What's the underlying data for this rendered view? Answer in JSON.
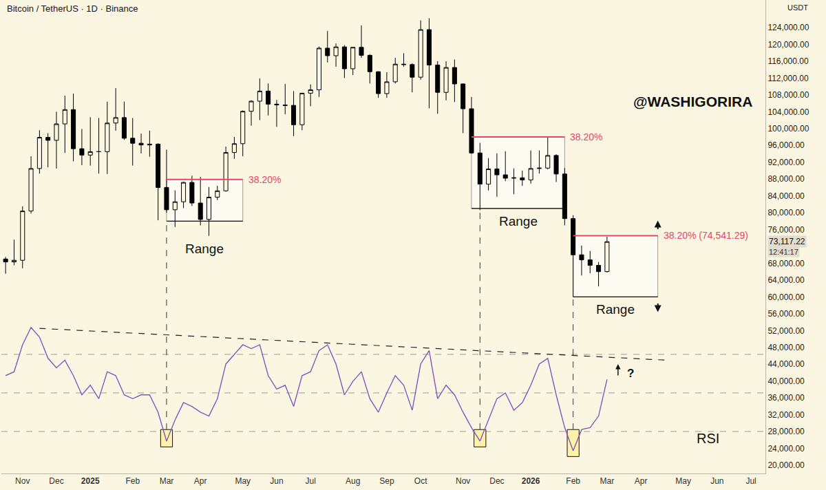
{
  "chart_data": {
    "type": "candlestick",
    "title": "Bitcoin / TetherUS · 1D · Binance",
    "currency": "USDT",
    "watermark": "@WASHIGORIRA",
    "categories": [
      null,
      null,
      "Nov",
      null,
      null,
      null,
      "Dec",
      null,
      null,
      null,
      "2025",
      null,
      null,
      null,
      null,
      "Feb",
      null,
      null,
      null,
      "Mar",
      null,
      null,
      null,
      "Apr",
      null,
      null,
      null,
      null,
      "May",
      null,
      null,
      null,
      "Jun",
      null,
      null,
      null,
      "Jul",
      null,
      null,
      null,
      null,
      "Aug",
      null,
      null,
      null,
      "Sep",
      null,
      null,
      null,
      "Oct",
      null,
      null,
      null,
      null,
      "Nov",
      null,
      null,
      null,
      "Dec",
      null,
      null,
      null,
      "2026",
      null,
      null,
      null,
      null,
      "Feb",
      null,
      null,
      null,
      "Mar",
      null,
      null,
      null,
      "Apr",
      null,
      null,
      null,
      null,
      "May",
      null,
      null,
      null,
      "Jun",
      null,
      null,
      null,
      "Jul",
      null
    ],
    "open": [
      69000,
      68300,
      68700,
      80400,
      90500,
      97900,
      97200,
      101100,
      104500,
      95200,
      93700,
      94500,
      94500,
      101300,
      102600,
      97700,
      96500,
      96100,
      96300,
      86000,
      80700,
      82600,
      87200,
      82300,
      78400,
      83700,
      85200,
      94300,
      96400,
      104100,
      106500,
      108900,
      105800,
      105600,
      105500,
      100900,
      108400,
      109200,
      119100,
      117300,
      119400,
      114200,
      119300,
      117400,
      113500,
      108300,
      111100,
      115300,
      115200,
      112200,
      123500,
      115100,
      108600,
      114500,
      110600,
      104700,
      94200,
      86800,
      90400,
      89000,
      88200,
      88300,
      87800,
      90500,
      90600,
      93600,
      89200,
      78600,
      70000,
      68800,
      67500,
      66000,
      null,
      null,
      null,
      null,
      null,
      null,
      null,
      null,
      null,
      null,
      null,
      null,
      null,
      null,
      null,
      null,
      null,
      null
    ],
    "high": [
      69500,
      73600,
      81500,
      93400,
      99600,
      98900,
      104000,
      107800,
      108300,
      99900,
      102700,
      102500,
      106400,
      109600,
      106400,
      102500,
      98800,
      99500,
      96500,
      95000,
      85300,
      87400,
      88800,
      88500,
      86100,
      86400,
      95700,
      98000,
      104300,
      106700,
      111900,
      110700,
      106800,
      110600,
      108900,
      108500,
      110500,
      119500,
      123200,
      120200,
      119800,
      119300,
      124500,
      117600,
      113600,
      113400,
      116800,
      117900,
      115500,
      125700,
      126200,
      116000,
      116000,
      116400,
      110700,
      107500,
      96600,
      93000,
      94100,
      94600,
      90500,
      90000,
      94800,
      94800,
      97900,
      93900,
      90600,
      79400,
      72200,
      70900,
      68300,
      74300,
      null,
      null,
      null,
      null,
      null,
      null,
      null,
      null,
      null,
      null,
      null,
      null,
      null,
      null,
      null,
      null,
      null,
      null
    ],
    "low": [
      65500,
      67500,
      66800,
      79800,
      89300,
      90800,
      90500,
      94200,
      92200,
      91300,
      91200,
      89300,
      89200,
      99500,
      97300,
      91200,
      94100,
      93300,
      78200,
      80000,
      76600,
      81100,
      81600,
      77000,
      74500,
      83000,
      85000,
      92800,
      93400,
      100700,
      102000,
      103100,
      100400,
      103400,
      98200,
      99600,
      105300,
      107500,
      115700,
      114700,
      112000,
      112700,
      116800,
      110700,
      107300,
      107300,
      110700,
      114700,
      108600,
      111600,
      104800,
      103500,
      106700,
      106300,
      98900,
      94000,
      80600,
      85300,
      83800,
      87500,
      84400,
      86400,
      86900,
      89300,
      90300,
      87300,
      77000,
      60000,
      65100,
      65600,
      62500,
      65800,
      null,
      null,
      null,
      null,
      null,
      null,
      null,
      null,
      null,
      null,
      null,
      null,
      null,
      null,
      null,
      null,
      null,
      null
    ],
    "close": [
      68300,
      68700,
      80400,
      90500,
      97900,
      97200,
      101100,
      104500,
      95200,
      93700,
      94500,
      94500,
      101300,
      102600,
      97700,
      96500,
      96100,
      96300,
      86000,
      80700,
      82600,
      87200,
      82300,
      78400,
      83700,
      85200,
      94300,
      96400,
      104100,
      106500,
      108900,
      105800,
      105600,
      105500,
      100900,
      108400,
      109200,
      119100,
      117300,
      119400,
      114200,
      119300,
      117400,
      113500,
      108300,
      111100,
      115300,
      115200,
      112200,
      123500,
      115100,
      108600,
      114500,
      110600,
      104700,
      94200,
      86800,
      90400,
      89000,
      88200,
      88300,
      87800,
      90500,
      90600,
      93600,
      89200,
      78600,
      70000,
      68800,
      67500,
      66000,
      73117.22,
      null,
      null,
      null,
      null,
      null,
      null,
      null,
      null,
      null,
      null,
      null,
      null,
      null,
      null,
      null,
      null,
      null,
      null
    ],
    "color": "#000000",
    "xlim": [
      -0.5,
      89.7
    ],
    "ylim": [
      18040,
      130540
    ],
    "yticks": [
      {
        "value": 20000,
        "label": "20,000.00"
      },
      {
        "value": 24000,
        "label": "24,000.00"
      },
      {
        "value": 28000,
        "label": "28,000.00"
      },
      {
        "value": 32000,
        "label": "32,000.00"
      },
      {
        "value": 36000,
        "label": "36,000.00"
      },
      {
        "value": 40000,
        "label": "40,000.00"
      },
      {
        "value": 44000,
        "label": "44,000.00"
      },
      {
        "value": 48000,
        "label": "48,000.00"
      },
      {
        "value": 52000,
        "label": "52,000.00"
      },
      {
        "value": 56000,
        "label": "56,000.00"
      },
      {
        "value": 60000,
        "label": "60,000.00"
      },
      {
        "value": 64000,
        "label": "64,000.00"
      },
      {
        "value": 68000,
        "label": "68,000.00"
      },
      {
        "value": 76000,
        "label": "76,000.00"
      },
      {
        "value": 80000,
        "label": "80,000.00"
      },
      {
        "value": 84000,
        "label": "84,000.00"
      },
      {
        "value": 88000,
        "label": "88,000.00"
      },
      {
        "value": 92000,
        "label": "92,000.00"
      },
      {
        "value": 96000,
        "label": "96,000.00"
      },
      {
        "value": 100000,
        "label": "100,000.00"
      },
      {
        "value": 104000,
        "label": "104,000.00"
      },
      {
        "value": 108000,
        "label": "108,000.00"
      },
      {
        "value": 112000,
        "label": "112,000.00"
      },
      {
        "value": 116000,
        "label": "116,000.00"
      },
      {
        "value": 120000,
        "label": "120,000.00"
      },
      {
        "value": 124000,
        "label": "124,000.00"
      }
    ],
    "grid": false,
    "last_price_label": "73,117.22",
    "countdown": "12:41:17",
    "ranges": [
      {
        "start": 19,
        "end": 28,
        "low": 78000,
        "high": 87900,
        "label": "Range",
        "level_label": "38.20%",
        "color": "#e5466b"
      },
      {
        "start": 55,
        "end": 66,
        "low": 81000,
        "high": 98000,
        "label": "Range",
        "level_label": "38.20%",
        "color": "#e5466b"
      },
      {
        "start": 67,
        "end": 77,
        "low": 60000,
        "high": 74541.29,
        "label": "Range",
        "level_label": "38.20% (74,541.29)",
        "color": "#e5466b"
      }
    ],
    "rsi": {
      "label": "RSI",
      "axis": "y2",
      "color": "#7e57c2",
      "values": [
        59,
        61,
        75,
        84,
        79,
        68,
        63,
        67,
        59,
        49,
        54,
        47,
        61,
        59,
        49,
        47,
        49,
        49,
        40,
        25,
        36,
        45,
        43,
        40,
        38,
        47,
        65,
        70,
        75,
        73,
        75,
        59,
        52,
        54,
        43,
        59,
        61,
        72,
        75,
        65,
        49,
        56,
        61,
        47,
        40,
        50,
        59,
        54,
        41,
        65,
        72,
        47,
        54,
        49,
        40,
        32,
        25,
        36,
        47,
        50,
        41,
        45,
        54,
        65,
        68,
        49,
        32,
        20,
        31,
        32,
        38,
        57,
        null,
        null,
        null,
        null,
        null,
        null,
        null,
        null,
        null,
        null,
        null,
        null,
        null,
        null,
        null,
        null,
        null,
        null
      ],
      "levels": [
        30,
        50,
        70
      ],
      "trendline": {
        "x": [
          4,
          78
        ],
        "y": [
          83.5,
          67
        ]
      },
      "note": "?"
    },
    "y2lim": [
      8.2,
      253.9
    ]
  }
}
